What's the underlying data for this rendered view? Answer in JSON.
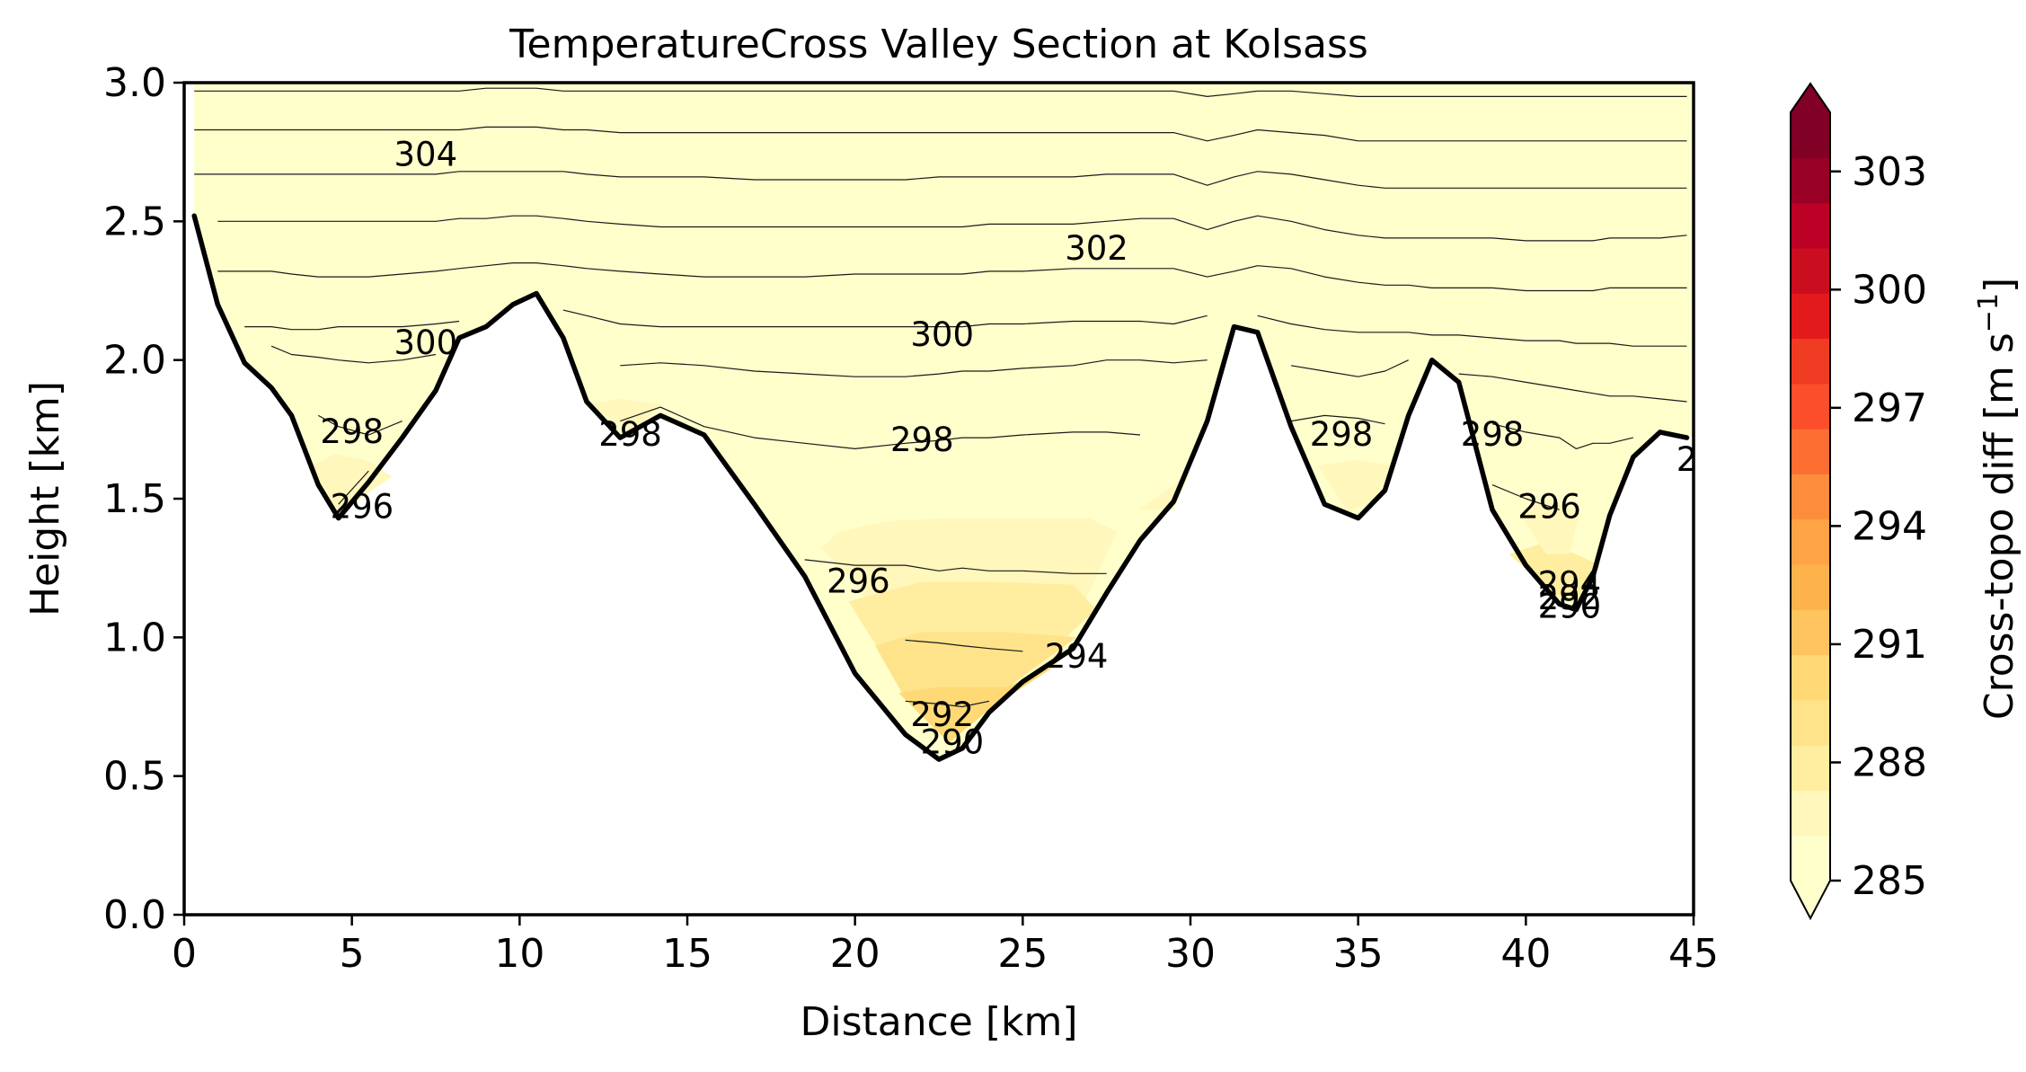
{
  "chart_data": {
    "type": "contour",
    "title": "TemperatureCross Valley Section at Kolsass",
    "xlabel": "Distance [km]",
    "ylabel": "Height [km]",
    "xlim": [
      0,
      45
    ],
    "ylim": [
      0,
      3
    ],
    "x_ticks": [
      0,
      5,
      10,
      15,
      20,
      25,
      30,
      35,
      40,
      45
    ],
    "y_ticks": [
      "0.0",
      "0.5",
      "1.0",
      "1.5",
      "2.0",
      "2.5",
      "3.0"
    ],
    "colorbar": {
      "label": "Cross-topo diff [m s$^{-1}$]",
      "label_text": "Cross-topo diff [m s",
      "label_sup": "−1",
      "label_close": "]",
      "ticks": [
        285,
        288,
        291,
        294,
        297,
        300,
        303
      ],
      "range": [
        285,
        304.5
      ],
      "extend": "both",
      "colormap": "YlOrRd",
      "colors": [
        "#ffffcc",
        "#fff7bb",
        "#ffeda0",
        "#fee38a",
        "#fed976",
        "#fec45f",
        "#feb24c",
        "#fea446",
        "#fd8d3c",
        "#fd6e33",
        "#fc4e2a",
        "#ef3b22",
        "#e31a1c",
        "#cb0d20",
        "#bd0026",
        "#990026",
        "#800026"
      ]
    },
    "terrain": {
      "x": [
        0.3,
        1.0,
        1.8,
        2.6,
        3.2,
        4.0,
        4.6,
        5.5,
        6.5,
        7.5,
        8.2,
        9.0,
        9.8,
        10.5,
        11.3,
        12.0,
        13.0,
        14.2,
        15.5,
        17.0,
        18.5,
        20.0,
        21.5,
        22.5,
        23.2,
        24.0,
        25.0,
        26.5,
        27.5,
        28.5,
        29.5,
        30.5,
        31.3,
        32.0,
        33.0,
        34.0,
        35.0,
        35.8,
        36.5,
        37.2,
        38.0,
        39.0,
        40.0,
        41.0,
        41.5,
        42.0,
        42.5,
        43.2,
        44.0,
        44.8
      ],
      "y": [
        2.52,
        2.2,
        1.99,
        1.9,
        1.8,
        1.55,
        1.43,
        1.56,
        1.72,
        1.89,
        2.08,
        2.12,
        2.2,
        2.24,
        2.08,
        1.85,
        1.72,
        1.8,
        1.73,
        1.48,
        1.22,
        0.87,
        0.65,
        0.56,
        0.6,
        0.73,
        0.84,
        0.96,
        1.16,
        1.35,
        1.49,
        1.78,
        2.12,
        2.1,
        1.76,
        1.48,
        1.43,
        1.53,
        1.8,
        2.0,
        1.92,
        1.46,
        1.26,
        1.12,
        1.1,
        1.22,
        1.44,
        1.65,
        1.74,
        1.72
      ]
    },
    "isotherms": [
      {
        "level": 290,
        "ys": [
          null,
          null,
          null,
          null,
          null,
          null,
          null,
          null,
          null,
          null,
          null,
          null,
          null,
          null,
          null,
          null,
          null,
          null,
          null,
          null,
          null,
          null,
          null,
          null,
          0.63,
          0.67,
          null,
          null,
          null,
          null,
          null,
          null,
          null,
          null,
          null,
          null,
          null,
          null,
          null,
          null,
          null,
          null,
          null,
          null,
          null,
          null,
          null,
          null,
          null,
          null
        ]
      },
      {
        "level": 292,
        "ys": [
          null,
          null,
          null,
          null,
          null,
          null,
          null,
          null,
          null,
          null,
          null,
          null,
          null,
          null,
          null,
          null,
          null,
          null,
          null,
          null,
          null,
          null,
          0.77,
          0.76,
          0.75,
          0.77,
          null,
          null,
          null,
          null,
          null,
          null,
          null,
          null,
          null,
          null,
          null,
          null,
          null,
          null,
          null,
          null,
          null,
          null,
          null,
          null,
          null,
          null,
          null,
          null
        ]
      },
      {
        "level": 294,
        "ys": [
          null,
          null,
          null,
          null,
          null,
          null,
          null,
          null,
          null,
          null,
          null,
          null,
          null,
          null,
          null,
          null,
          null,
          null,
          null,
          null,
          null,
          null,
          0.99,
          0.98,
          0.97,
          0.96,
          0.95,
          null,
          null,
          null,
          null,
          null,
          null,
          null,
          null,
          null,
          null,
          null,
          null,
          null,
          null,
          null,
          null,
          null,
          1.2,
          1.2,
          null,
          null,
          null,
          null
        ]
      },
      {
        "level": 296,
        "ys": [
          null,
          null,
          null,
          null,
          null,
          null,
          1.48,
          1.6,
          null,
          null,
          null,
          null,
          null,
          null,
          null,
          null,
          null,
          null,
          null,
          null,
          1.28,
          1.26,
          1.26,
          1.24,
          1.25,
          1.24,
          1.24,
          1.23,
          1.23,
          null,
          null,
          null,
          null,
          null,
          null,
          null,
          null,
          null,
          null,
          null,
          null,
          1.55,
          1.5,
          1.46,
          null,
          null,
          null,
          null,
          null,
          null
        ]
      },
      {
        "level": 298,
        "ys": [
          null,
          null,
          null,
          null,
          null,
          1.8,
          1.76,
          1.73,
          1.78,
          null,
          null,
          null,
          null,
          null,
          null,
          null,
          1.78,
          1.83,
          1.76,
          1.72,
          1.7,
          1.68,
          1.7,
          1.71,
          1.72,
          1.72,
          1.73,
          1.74,
          1.74,
          1.73,
          null,
          null,
          null,
          null,
          1.78,
          1.8,
          1.79,
          1.77,
          null,
          null,
          1.8,
          1.77,
          1.74,
          1.72,
          1.68,
          1.7,
          1.7,
          1.72,
          null,
          null
        ]
      },
      {
        "level": 299,
        "ys": [
          null,
          null,
          null,
          2.05,
          2.02,
          2.01,
          2.0,
          1.99,
          2.0,
          2.02,
          null,
          null,
          null,
          null,
          null,
          null,
          1.98,
          1.99,
          1.98,
          1.96,
          1.95,
          1.94,
          1.94,
          1.95,
          1.96,
          1.96,
          1.97,
          1.98,
          2.0,
          2.0,
          1.99,
          2.0,
          null,
          null,
          1.98,
          1.96,
          1.94,
          1.96,
          2.0,
          null,
          1.95,
          1.94,
          1.92,
          1.9,
          1.89,
          1.88,
          1.87,
          1.87,
          1.86,
          1.85
        ]
      },
      {
        "level": 300,
        "ys": [
          null,
          null,
          2.12,
          2.12,
          2.11,
          2.11,
          2.12,
          2.12,
          2.12,
          2.13,
          2.14,
          null,
          null,
          null,
          2.18,
          2.16,
          2.13,
          2.12,
          2.12,
          2.12,
          2.12,
          2.12,
          2.12,
          2.12,
          2.12,
          2.13,
          2.13,
          2.14,
          2.14,
          2.14,
          2.13,
          2.16,
          null,
          2.16,
          2.13,
          2.11,
          2.1,
          2.1,
          2.1,
          2.09,
          2.09,
          2.08,
          2.07,
          2.07,
          2.06,
          2.06,
          2.06,
          2.05,
          2.05,
          2.05
        ]
      },
      {
        "level": 301,
        "ys": [
          null,
          2.32,
          2.32,
          2.32,
          2.31,
          2.3,
          2.3,
          2.3,
          2.31,
          2.32,
          2.33,
          2.34,
          2.35,
          2.35,
          2.34,
          2.33,
          2.32,
          2.31,
          2.3,
          2.3,
          2.3,
          2.31,
          2.31,
          2.31,
          2.31,
          2.32,
          2.32,
          2.33,
          2.33,
          2.33,
          2.33,
          2.3,
          2.32,
          2.34,
          2.33,
          2.3,
          2.28,
          2.27,
          2.27,
          2.26,
          2.26,
          2.26,
          2.25,
          2.25,
          2.25,
          2.25,
          2.26,
          2.26,
          2.26,
          2.26
        ]
      },
      {
        "level": 302,
        "ys": [
          2.5,
          2.5,
          2.5,
          2.5,
          2.5,
          2.5,
          2.5,
          2.5,
          2.5,
          2.5,
          2.51,
          2.51,
          2.52,
          2.52,
          2.51,
          2.5,
          2.49,
          2.48,
          2.48,
          2.48,
          2.48,
          2.48,
          2.48,
          2.48,
          2.48,
          2.49,
          2.49,
          2.49,
          2.5,
          2.51,
          2.51,
          2.47,
          2.5,
          2.52,
          2.5,
          2.47,
          2.45,
          2.44,
          2.44,
          2.44,
          2.44,
          2.44,
          2.43,
          2.43,
          2.43,
          2.43,
          2.44,
          2.44,
          2.44,
          2.45
        ]
      },
      {
        "level": 303,
        "ys": [
          2.67,
          2.67,
          2.67,
          2.67,
          2.67,
          2.67,
          2.67,
          2.67,
          2.67,
          2.67,
          2.68,
          2.68,
          2.68,
          2.68,
          2.68,
          2.67,
          2.66,
          2.66,
          2.66,
          2.65,
          2.65,
          2.65,
          2.65,
          2.66,
          2.66,
          2.66,
          2.66,
          2.66,
          2.67,
          2.67,
          2.67,
          2.63,
          2.66,
          2.68,
          2.67,
          2.65,
          2.63,
          2.62,
          2.62,
          2.62,
          2.62,
          2.62,
          2.62,
          2.62,
          2.62,
          2.62,
          2.62,
          2.62,
          2.62,
          2.62
        ]
      },
      {
        "level": 304,
        "ys": [
          2.83,
          2.83,
          2.83,
          2.83,
          2.83,
          2.83,
          2.83,
          2.83,
          2.83,
          2.83,
          2.83,
          2.84,
          2.84,
          2.84,
          2.83,
          2.83,
          2.82,
          2.82,
          2.82,
          2.82,
          2.82,
          2.82,
          2.82,
          2.82,
          2.82,
          2.82,
          2.82,
          2.82,
          2.82,
          2.82,
          2.82,
          2.79,
          2.81,
          2.83,
          2.82,
          2.81,
          2.79,
          2.79,
          2.79,
          2.79,
          2.79,
          2.79,
          2.79,
          2.79,
          2.79,
          2.79,
          2.79,
          2.79,
          2.79,
          2.79
        ]
      },
      {
        "level": 305,
        "ys": [
          2.97,
          2.97,
          2.97,
          2.97,
          2.97,
          2.97,
          2.97,
          2.97,
          2.97,
          2.97,
          2.97,
          2.98,
          2.98,
          2.98,
          2.97,
          2.97,
          2.97,
          2.97,
          2.97,
          2.97,
          2.97,
          2.97,
          2.97,
          2.97,
          2.97,
          2.97,
          2.97,
          2.97,
          2.97,
          2.97,
          2.97,
          2.95,
          2.96,
          2.97,
          2.97,
          2.96,
          2.95,
          2.95,
          2.95,
          2.95,
          2.95,
          2.95,
          2.95,
          2.95,
          2.95,
          2.95,
          2.95,
          2.95,
          2.95,
          2.95
        ]
      }
    ],
    "contour_labels": [
      {
        "text": "304",
        "x": 7.2,
        "y": 2.74
      },
      {
        "text": "302",
        "x": 27.2,
        "y": 2.4
      },
      {
        "text": "300",
        "x": 7.2,
        "y": 2.06
      },
      {
        "text": "300",
        "x": 22.6,
        "y": 2.09
      },
      {
        "text": "298",
        "x": 5.0,
        "y": 1.74
      },
      {
        "text": "298",
        "x": 13.3,
        "y": 1.73
      },
      {
        "text": "298",
        "x": 22.0,
        "y": 1.71
      },
      {
        "text": "298",
        "x": 34.5,
        "y": 1.73
      },
      {
        "text": "298",
        "x": 39.0,
        "y": 1.73
      },
      {
        "text": "296",
        "x": 5.3,
        "y": 1.47
      },
      {
        "text": "296",
        "x": 20.1,
        "y": 1.2
      },
      {
        "text": "296",
        "x": 40.7,
        "y": 1.47
      },
      {
        "text": "294",
        "x": 26.6,
        "y": 0.93
      },
      {
        "text": "294",
        "x": 41.3,
        "y": 1.19
      },
      {
        "text": "292",
        "x": 41.3,
        "y": 1.14
      },
      {
        "text": "290",
        "x": 41.3,
        "y": 1.11
      },
      {
        "text": "292",
        "x": 22.6,
        "y": 0.72
      },
      {
        "text": "290",
        "x": 22.9,
        "y": 0.62
      },
      {
        "text": "2",
        "x": 44.8,
        "y": 1.64
      }
    ],
    "cold_pools": [
      {
        "x": [
          19.0,
          19.5,
          21.0,
          23.0,
          25.0,
          27.0,
          27.8,
          26.0,
          23.0,
          20.0
        ],
        "y": [
          1.32,
          1.38,
          1.42,
          1.43,
          1.43,
          1.43,
          1.38,
          0.9,
          0.66,
          1.2
        ],
        "value": 287.2
      },
      {
        "x": [
          19.8,
          22.0,
          24.0,
          26.5,
          27.2,
          25.0,
          23.0,
          21.0
        ],
        "y": [
          1.13,
          1.2,
          1.2,
          1.19,
          1.1,
          0.86,
          0.68,
          0.9
        ],
        "value": 288.2
      },
      {
        "x": [
          20.6,
          22.0,
          24.5,
          26.6,
          25.0,
          23.0,
          21.4
        ],
        "y": [
          0.97,
          1.02,
          1.02,
          1.0,
          0.86,
          0.68,
          0.8
        ],
        "value": 289.4
      },
      {
        "x": [
          21.3,
          22.5,
          24.5,
          26.0,
          24.0,
          22.8
        ],
        "y": [
          0.8,
          0.82,
          0.82,
          0.9,
          0.74,
          0.62
        ],
        "value": 290.5
      },
      {
        "x": [
          39.5,
          40.5,
          41.5,
          42.2,
          41.6,
          40.8
        ],
        "y": [
          1.3,
          1.34,
          1.3,
          1.26,
          1.12,
          1.16
        ],
        "value": 287.5
      },
      {
        "x": [
          39.8,
          40.7,
          41.6,
          41.3,
          40.6
        ],
        "y": [
          1.45,
          1.5,
          1.45,
          1.3,
          1.3
        ],
        "value": 286.8
      },
      {
        "x": [
          3.8,
          4.5,
          5.4,
          6.2,
          5.0,
          4.4
        ],
        "y": [
          1.62,
          1.66,
          1.64,
          1.58,
          1.48,
          1.45
        ],
        "value": 286.9
      },
      {
        "x": [
          33.8,
          35.0,
          36.0,
          35.5,
          34.7
        ],
        "y": [
          1.62,
          1.64,
          1.62,
          1.5,
          1.45
        ],
        "value": 286.9
      },
      {
        "x": [
          12.0,
          13.0,
          14.2,
          13.4
        ],
        "y": [
          1.84,
          1.86,
          1.84,
          1.74
        ],
        "value": 286.6
      },
      {
        "x": [
          28.5,
          29.5,
          30.0,
          29.5
        ],
        "y": [
          1.46,
          1.46,
          1.6,
          1.55
        ],
        "value": 286.5
      }
    ]
  }
}
